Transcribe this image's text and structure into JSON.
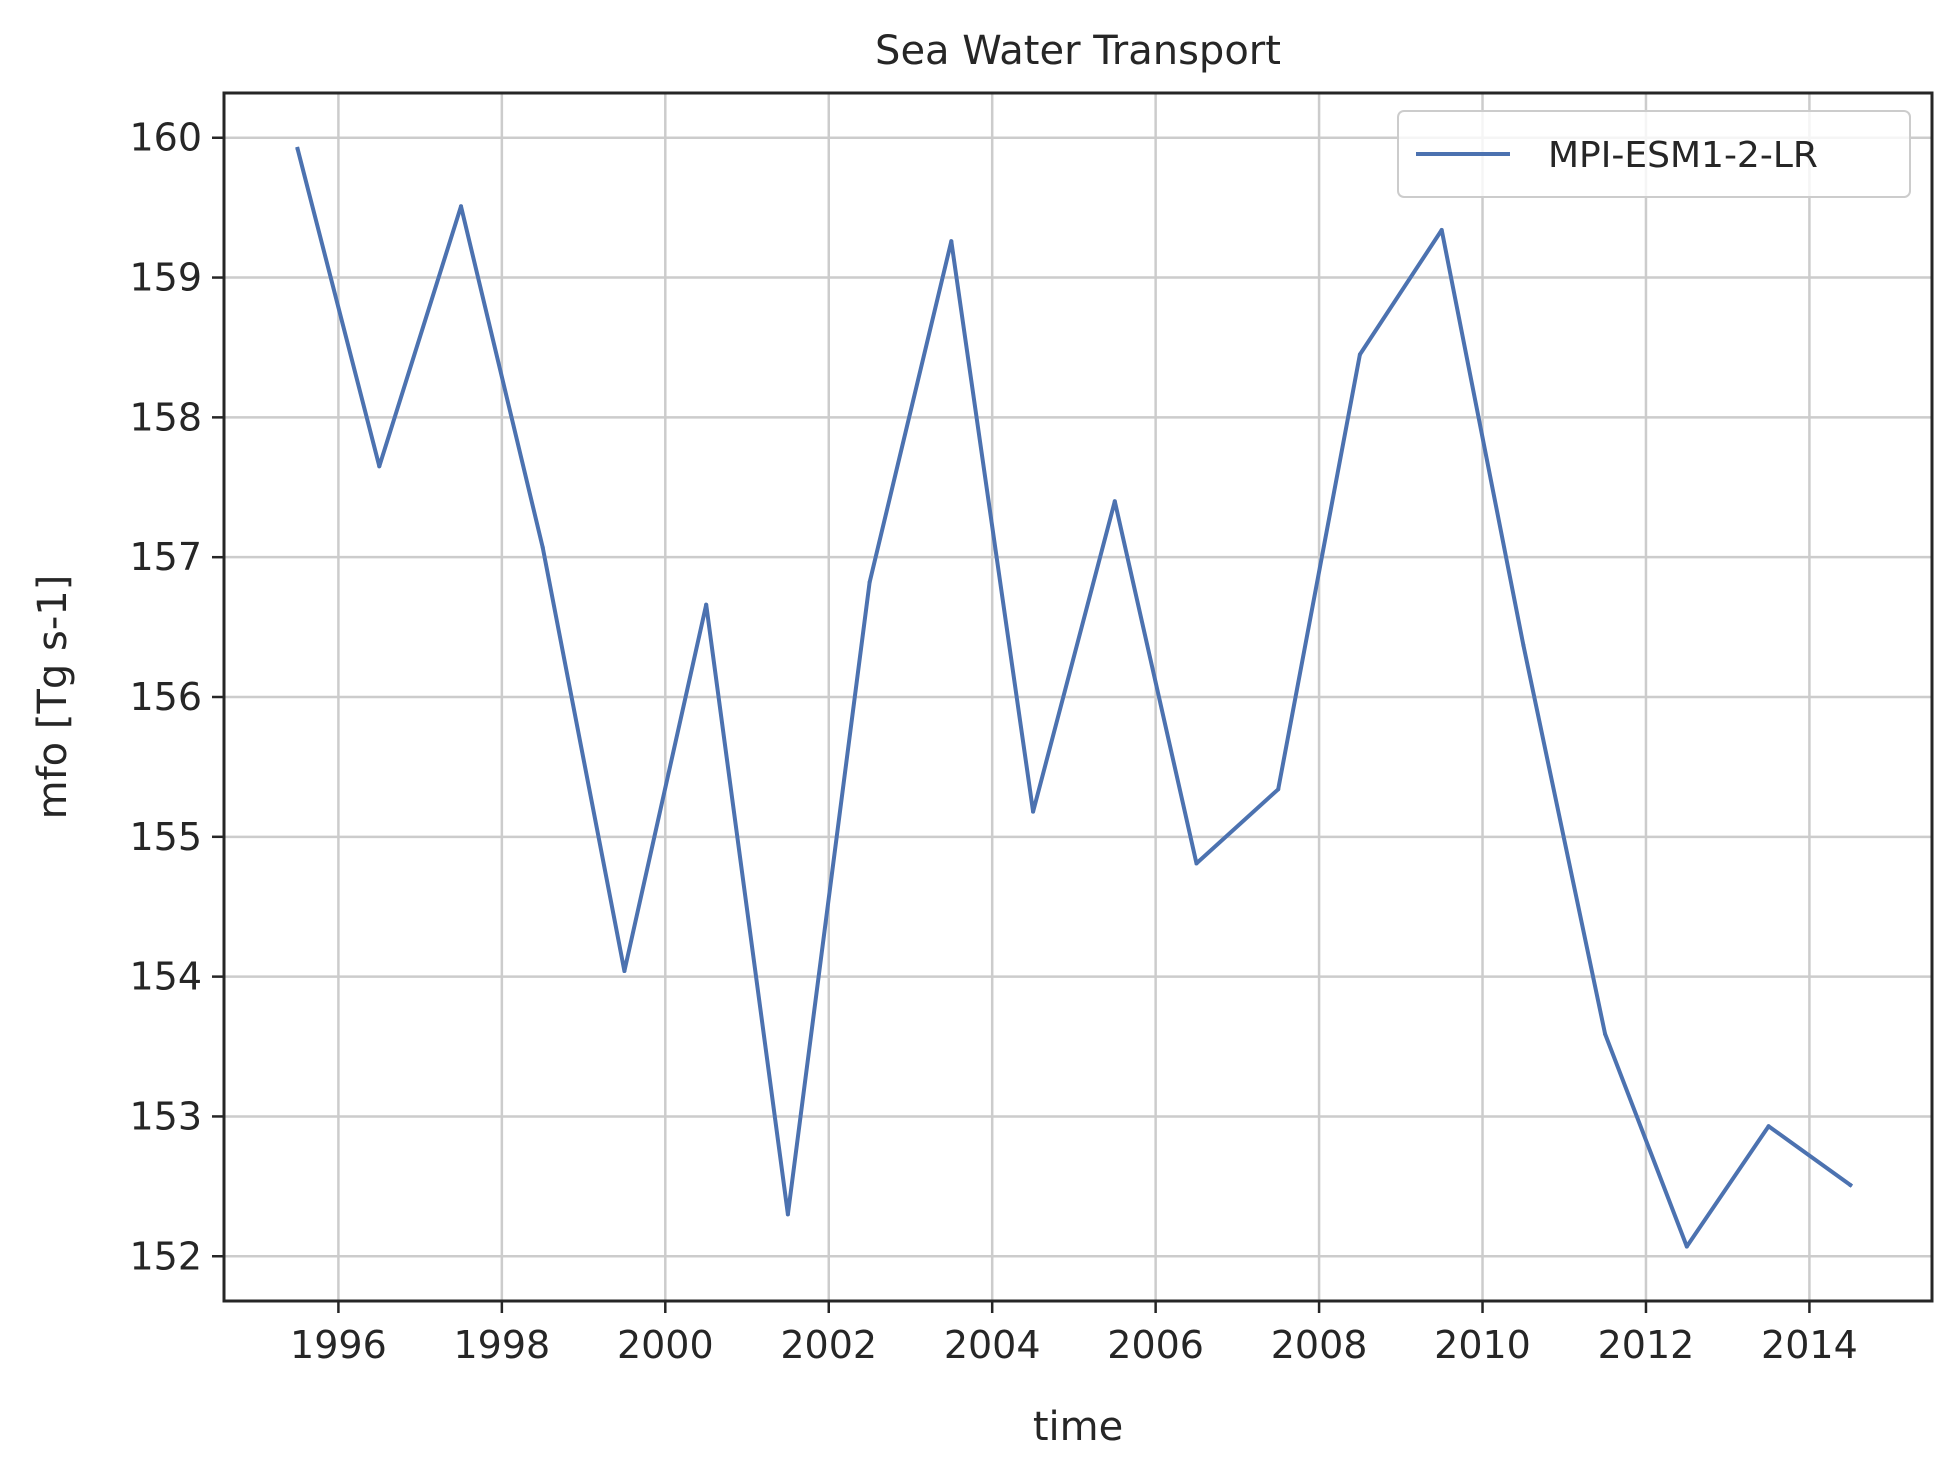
{
  "chart_data": {
    "type": "line",
    "title": "Sea Water Transport",
    "xlabel": "time",
    "ylabel": "mfo [Tg s-1]",
    "xlim": [
      1994.6,
      2015.5
    ],
    "ylim": [
      151.68,
      160.32
    ],
    "x_ticks": [
      1996,
      1998,
      2000,
      2002,
      2004,
      2006,
      2008,
      2010,
      2012,
      2014
    ],
    "y_ticks": [
      152,
      153,
      154,
      155,
      156,
      157,
      158,
      159,
      160
    ],
    "grid": true,
    "legend_position": "top-right",
    "series": [
      {
        "name": "MPI-ESM1-2-LR",
        "color": "#4c72b0",
        "x": [
          1995.5,
          1996.5,
          1997.5,
          1998.5,
          1999.5,
          2000.5,
          2001.5,
          2002.5,
          2003.5,
          2004.5,
          2005.5,
          2006.5,
          2007.5,
          2008.5,
          2009.5,
          2010.5,
          2011.5,
          2012.5,
          2013.5,
          2014.5
        ],
        "y": [
          159.92,
          157.65,
          159.51,
          157.07,
          154.04,
          156.66,
          152.3,
          156.82,
          159.26,
          155.18,
          157.4,
          154.81,
          155.34,
          158.45,
          159.34,
          156.37,
          153.59,
          152.07,
          152.93,
          152.51
        ]
      }
    ]
  }
}
